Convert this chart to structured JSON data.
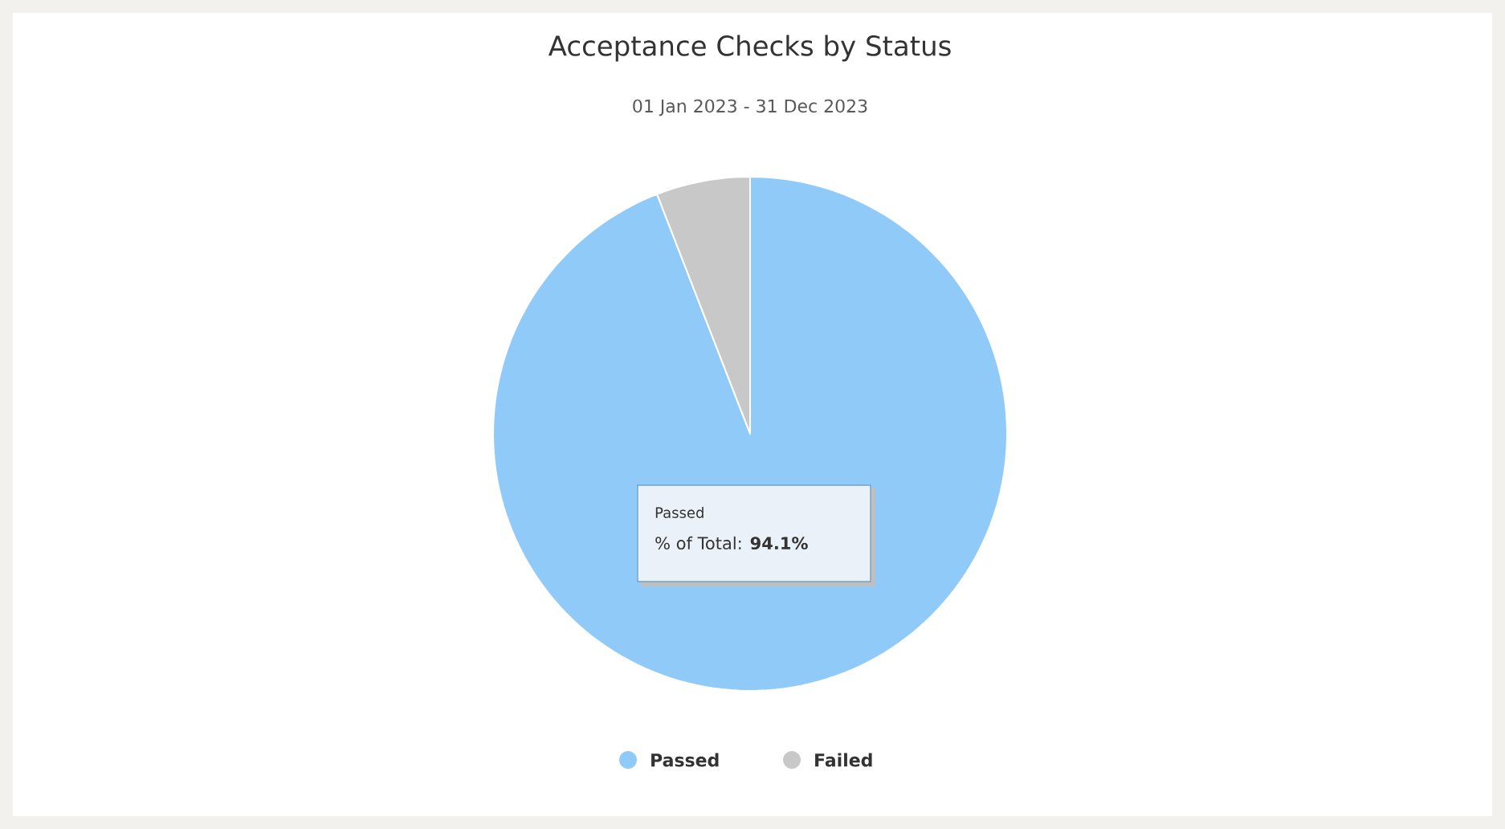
{
  "chart_data": {
    "type": "pie",
    "title": "Acceptance Checks by Status",
    "subtitle": "01 Jan 2023 - 31 Dec 2023",
    "categories": [
      "Passed",
      "Failed"
    ],
    "values": [
      94.1,
      5.9
    ],
    "colors": [
      "#90caf9",
      "#c8c8c8"
    ],
    "legend": "bottom",
    "annotations": [
      "Passed",
      "% of Total: **94.1%**"
    ]
  }
}
